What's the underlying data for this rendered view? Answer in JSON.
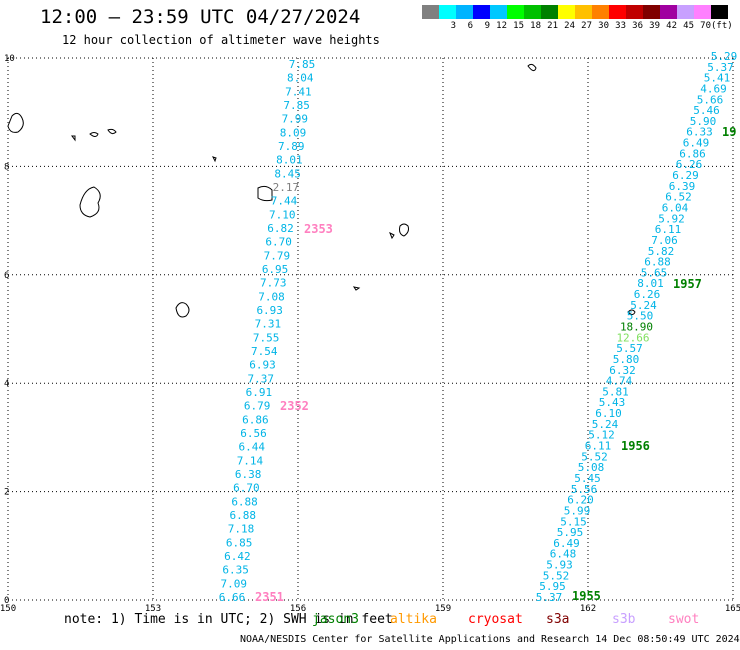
{
  "title": "12:00 – 23:59 UTC 04/27/2024",
  "subtitle": "12 hour collection of altimeter wave heights",
  "colorbar": {
    "unit": "(ft)",
    "levels": [
      {
        "label": "",
        "color": "#808080"
      },
      {
        "label": "3",
        "color": "#00ffff"
      },
      {
        "label": "6",
        "color": "#00b4ff"
      },
      {
        "label": "9",
        "color": "#0000ff"
      },
      {
        "label": "12",
        "color": "#00c8ff"
      },
      {
        "label": "15",
        "color": "#00ff00"
      },
      {
        "label": "18",
        "color": "#00c000"
      },
      {
        "label": "21",
        "color": "#008000"
      },
      {
        "label": "24",
        "color": "#ffff00"
      },
      {
        "label": "27",
        "color": "#ffc000"
      },
      {
        "label": "30",
        "color": "#ff8000"
      },
      {
        "label": "33",
        "color": "#ff0000"
      },
      {
        "label": "36",
        "color": "#c00000"
      },
      {
        "label": "39",
        "color": "#800000"
      },
      {
        "label": "42",
        "color": "#a000a0"
      },
      {
        "label": "45",
        "color": "#c8a0ff"
      },
      {
        "label": "70",
        "color": "#ff80ff"
      },
      {
        "label": "",
        "color": "#000000"
      }
    ]
  },
  "map": {
    "lon_range": [
      150,
      165
    ],
    "lat_range": [
      0,
      10
    ],
    "x_ticks": [
      "150",
      "153",
      "156",
      "159",
      "162",
      "165"
    ],
    "y_ticks": [
      "0",
      "2",
      "4",
      "6",
      "8",
      "10"
    ],
    "grid": "dotted"
  },
  "tracks": [
    {
      "name": "track-west",
      "color": "#00b4e6",
      "values": [
        "7.85",
        "8.04",
        "7.41",
        "7.85",
        "7.99",
        "8.09",
        "7.89",
        "8.01",
        "8.45",
        "2.17",
        "7.44",
        "7.10",
        "6.82",
        "6.70",
        "7.79",
        "6.95",
        "7.73",
        "7.08",
        "6.93",
        "7.31",
        "7.55",
        "7.54",
        "6.93",
        "7.37",
        "6.91",
        "6.79",
        "6.86",
        "6.56",
        "6.44",
        "7.14",
        "6.38",
        "6.70",
        "6.88",
        "6.88",
        "7.18",
        "6.85",
        "6.42",
        "6.35",
        "7.09",
        "6.66"
      ],
      "highlight": {
        "index": 9,
        "color": "#808080"
      },
      "time_labels": [
        {
          "text": "2353",
          "color": "#ff80c0"
        },
        {
          "text": "2352",
          "color": "#ff80c0"
        },
        {
          "text": "2351",
          "color": "#ff80c0"
        }
      ]
    },
    {
      "name": "track-east",
      "color": "#00b4e6",
      "values": [
        "5.29",
        "5.37",
        "5.41",
        "4.69",
        "5.66",
        "5.46",
        "5.90",
        "6.33",
        "6.49",
        "6.86",
        "6.26",
        "6.29",
        "6.39",
        "6.52",
        "6.04",
        "5.92",
        "6.11",
        "7.06",
        "5.82",
        "6.88",
        "5.65",
        "8.01",
        "6.26",
        "5.24",
        "5.50",
        "18.90",
        "12.66",
        "5.57",
        "5.80",
        "6.32",
        "4.74",
        "5.81",
        "5.43",
        "6.10",
        "5.24",
        "5.12",
        "6.11",
        "5.52",
        "5.08",
        "5.45",
        "5.56",
        "6.20",
        "5.99",
        "5.15",
        "5.95",
        "6.49",
        "6.48",
        "5.93",
        "5.52",
        "5.95",
        "5.37"
      ],
      "special": [
        {
          "index": 25,
          "color": "#008000"
        },
        {
          "index": 26,
          "color": "#80e060"
        }
      ],
      "time_labels": [
        {
          "text": "19",
          "color": "#008000"
        },
        {
          "text": "1957",
          "color": "#008000"
        },
        {
          "text": "1956",
          "color": "#008000"
        },
        {
          "text": "1955",
          "color": "#008000"
        }
      ]
    }
  ],
  "note": "note: 1) Time is in UTC; 2) SWH is in feet",
  "satellites": [
    {
      "name": "jason3",
      "color": "#008000"
    },
    {
      "name": "altika",
      "color": "#ff9900"
    },
    {
      "name": "cryosat",
      "color": "#ff0000"
    },
    {
      "name": "s3a",
      "color": "#800000"
    },
    {
      "name": "s3b",
      "color": "#c8a0ff"
    },
    {
      "name": "swot",
      "color": "#ff80c0"
    }
  ],
  "footer": "NOAA/NESDIS Center for Satellite Applications and Research   14 Dec 08:50:49 UTC 2024"
}
